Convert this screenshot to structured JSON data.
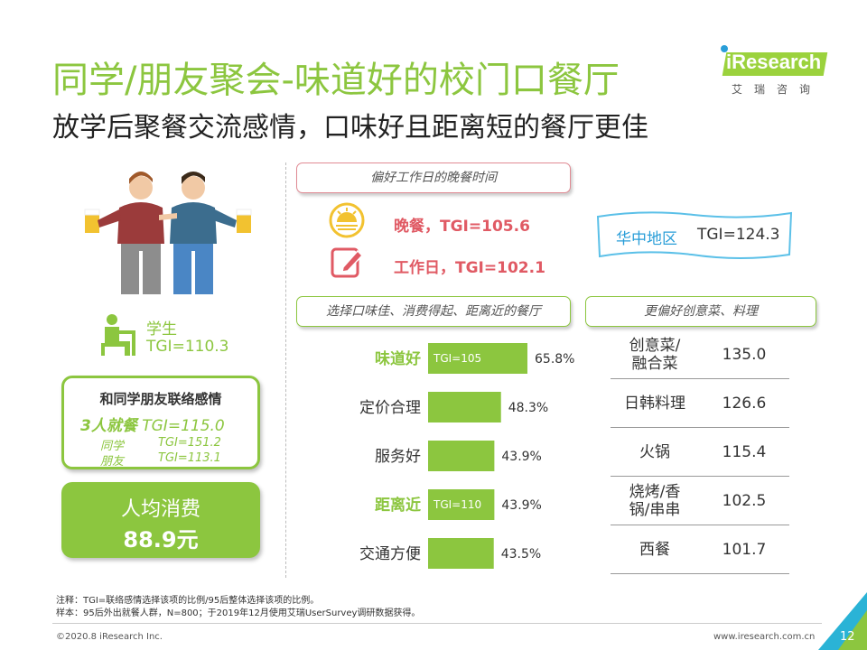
{
  "title": "同学/朋友聚会-味道好的校门口餐厅",
  "subtitle": "放学后聚餐交流感情，口味好且距离短的餐厅更佳",
  "logo": {
    "text": "iResearch",
    "sub": "艾瑞咨询"
  },
  "student": {
    "label": "学生",
    "tgi": "TGI=110.3"
  },
  "contact": {
    "title": "和同学朋友联络感情",
    "main_bold": "3人就餐",
    "main_tgi": "TGI=115.0",
    "rows": [
      {
        "label": "同学",
        "tgi": "TGI=151.2"
      },
      {
        "label": "朋友",
        "tgi": "TGI=113.1"
      }
    ]
  },
  "spend": {
    "label": "人均消费",
    "value": "88.9元"
  },
  "dinner": {
    "header": "偏好工作日的晚餐时间",
    "dinner_tgi": "晚餐，TGI=105.6",
    "workday_tgi": "工作日，TGI=102.1"
  },
  "region": {
    "label": "华中地区",
    "tgi": "TGI=124.3"
  },
  "taste_header": "选择口味佳、消费得起、距离近的餐厅",
  "creative_header": "更偏好创意菜、料理",
  "chart_data": {
    "type": "bar",
    "orientation": "horizontal",
    "categories": [
      "味道好",
      "定价合理",
      "服务好",
      "距离近",
      "交通方便"
    ],
    "values": [
      65.8,
      48.3,
      43.9,
      43.9,
      43.5
    ],
    "value_labels": [
      "65.8%",
      "48.3%",
      "43.9%",
      "43.9%",
      "43.5%"
    ],
    "highlight": [
      true,
      false,
      false,
      true,
      false
    ],
    "bar_annotations": [
      "TGI=105",
      "",
      "",
      "TGI=110",
      ""
    ],
    "bar_color": "#8cc63f",
    "highlight_label_color": "#8cc63f"
  },
  "cuisine_table": [
    {
      "name": "创意菜/\n融合菜",
      "value": "135.0"
    },
    {
      "name": "日韩料理",
      "value": "126.6"
    },
    {
      "name": "火锅",
      "value": "115.4"
    },
    {
      "name": "烧烤/香\n锅/串串",
      "value": "102.5"
    },
    {
      "name": "西餐",
      "value": "101.7"
    }
  ],
  "footer": {
    "note1": "注释：TGI=联络感情选择该项的比例/95后整体选择该项的比例。",
    "note2": "样本：95后外出就餐人群，N=800；于2019年12月使用艾瑞UserSurvey调研数据获得。",
    "copyright": "©2020.8 iResearch Inc.",
    "site": "www.iresearch.com.cn",
    "page": "12"
  },
  "colors": {
    "accent": "#8cc63f",
    "pink": "#e05a64",
    "blue": "#2a9ed8"
  }
}
